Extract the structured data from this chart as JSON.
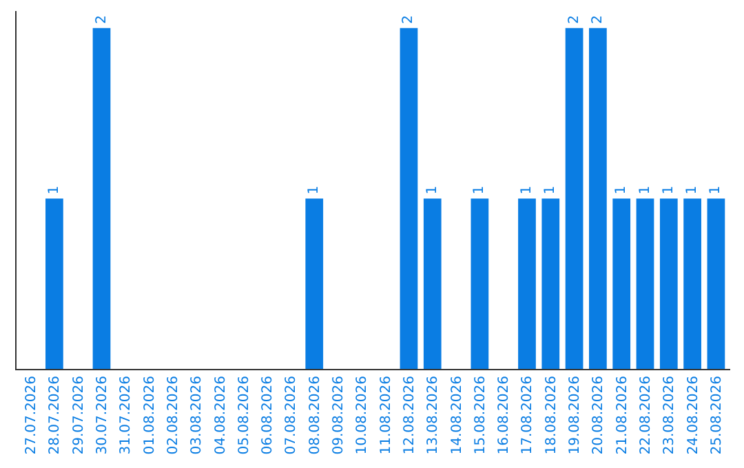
{
  "chart_data": {
    "type": "bar",
    "categories": [
      "27.07.2026",
      "28.07.2026",
      "29.07.2026",
      "30.07.2026",
      "31.07.2026",
      "01.08.2026",
      "02.08.2026",
      "03.08.2026",
      "04.08.2026",
      "05.08.2026",
      "06.08.2026",
      "07.08.2026",
      "08.08.2026",
      "09.08.2026",
      "10.08.2026",
      "11.08.2026",
      "12.08.2026",
      "13.08.2026",
      "14.08.2026",
      "15.08.2026",
      "16.08.2026",
      "17.08.2026",
      "18.08.2026",
      "19.08.2026",
      "20.08.2026",
      "21.08.2026",
      "22.08.2026",
      "23.08.2026",
      "24.08.2026",
      "25.08.2026"
    ],
    "values": [
      0,
      1,
      0,
      2,
      0,
      0,
      0,
      0,
      0,
      0,
      0,
      0,
      1,
      0,
      0,
      0,
      2,
      1,
      0,
      1,
      0,
      1,
      1,
      2,
      2,
      1,
      1,
      1,
      1,
      1
    ],
    "color": "#0a7de3",
    "ylim": [
      0,
      2.1
    ],
    "value_labels": [
      null,
      "1",
      null,
      "2",
      null,
      null,
      null,
      null,
      null,
      null,
      null,
      null,
      "1",
      null,
      null,
      null,
      "2",
      "1",
      null,
      "1",
      null,
      "1",
      "1",
      "2",
      "2",
      "1",
      "1",
      "1",
      "1",
      "1"
    ],
    "tick_labels": "x"
  }
}
